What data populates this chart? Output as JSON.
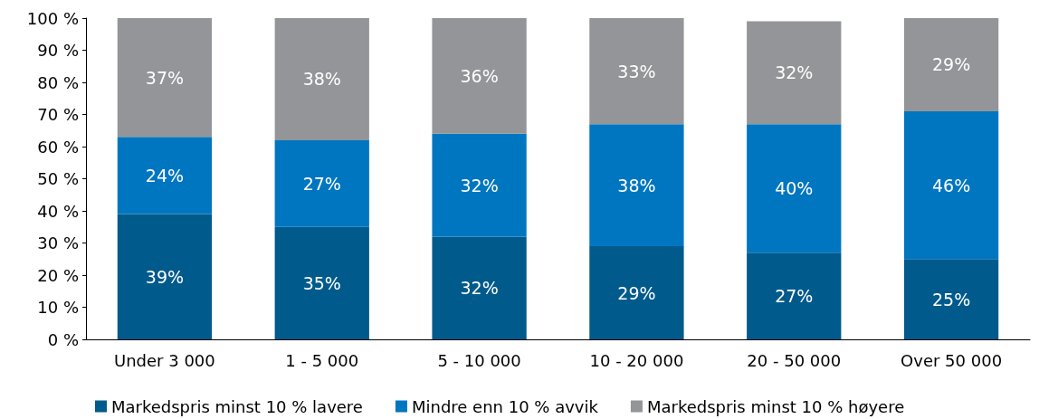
{
  "chart_data": {
    "type": "bar",
    "stacked": true,
    "categories": [
      "Under 3 000",
      "1 - 5 000",
      "5 - 10 000",
      "10 - 20 000",
      "20 - 50 000",
      "Over 50 000"
    ],
    "series": [
      {
        "name": "Markedspris minst 10 % lavere",
        "color": "#005a8c",
        "values": [
          39,
          35,
          32,
          29,
          27,
          25
        ],
        "value_labels": [
          "39%",
          "35%",
          "32%",
          "29%",
          "27%",
          "25%"
        ]
      },
      {
        "name": "Mindre enn 10 % avvik",
        "color": "#0076c0",
        "values": [
          24,
          27,
          32,
          38,
          40,
          46
        ],
        "value_labels": [
          "24%",
          "27%",
          "32%",
          "38%",
          "40%",
          "46%"
        ]
      },
      {
        "name": "Markedspris minst 10 % høyere",
        "color": "#939598",
        "values": [
          37,
          38,
          36,
          33,
          32,
          29
        ],
        "value_labels": [
          "37%",
          "38%",
          "36%",
          "33%",
          "32%",
          "29%"
        ]
      }
    ],
    "ylim": [
      0,
      100
    ],
    "yticks": [
      {
        "value": 0,
        "label": "0 %"
      },
      {
        "value": 10,
        "label": "10 %"
      },
      {
        "value": 20,
        "label": "20 %"
      },
      {
        "value": 30,
        "label": "30 %"
      },
      {
        "value": 40,
        "label": "40 %"
      },
      {
        "value": 50,
        "label": "50 %"
      },
      {
        "value": 60,
        "label": "60 %"
      },
      {
        "value": 70,
        "label": "70 %"
      },
      {
        "value": 80,
        "label": "80 %"
      },
      {
        "value": 90,
        "label": "90 %"
      },
      {
        "value": 100,
        "label": "100 %"
      }
    ],
    "grid": false,
    "legend": "bottom"
  }
}
